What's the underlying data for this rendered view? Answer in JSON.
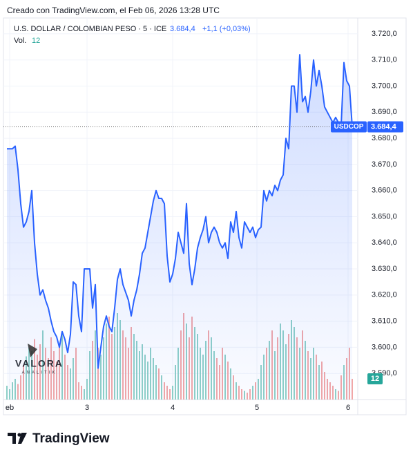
{
  "header": "Creado con TradingView.com, el Feb 06, 2026 13:28 UTC",
  "footer": "TradingView",
  "watermark": {
    "title": "VALORA",
    "subtitle": "ANALITIK"
  },
  "chart_data": {
    "type": "line",
    "title": "U.S. DOLLAR / COLOMBIAN PESO · 5 · ICE",
    "change": "+1,1 (+0,03%)",
    "symbol": "USDCOP",
    "last_price": {
      "value": 3684.4,
      "label": "3.684,4"
    },
    "volume_label": "Vol.",
    "color": "#2962ff",
    "up_color": "#8fd0c7",
    "down_color": "#f2a7a7",
    "grid": true,
    "xlim": [
      0,
      127
    ],
    "xticks": [
      {
        "value": 1,
        "label": "eb"
      },
      {
        "value": 29,
        "label": "3"
      },
      {
        "value": 60,
        "label": "4"
      },
      {
        "value": 90.5,
        "label": "5"
      },
      {
        "value": 123.5,
        "label": "6"
      }
    ],
    "ylim": [
      3580,
      3725
    ],
    "yticks": [
      {
        "value": 3590,
        "label": "3.590,0"
      },
      {
        "value": 3600,
        "label": "3.600,0"
      },
      {
        "value": 3610,
        "label": "3.610,0"
      },
      {
        "value": 3620,
        "label": "3.620,0"
      },
      {
        "value": 3630,
        "label": "3.630,0"
      },
      {
        "value": 3640,
        "label": "3.640,0"
      },
      {
        "value": 3650,
        "label": "3.650,0"
      },
      {
        "value": 3660,
        "label": "3.660,0"
      },
      {
        "value": 3670,
        "label": "3.670,0"
      },
      {
        "value": 3680,
        "label": "3.680,0"
      },
      {
        "value": 3690,
        "label": "3.690,0"
      },
      {
        "value": 3700,
        "label": "3.700,0"
      },
      {
        "value": 3710,
        "label": "3.710,0"
      },
      {
        "value": 3720,
        "label": "3.720,0"
      }
    ],
    "values": [
      3676,
      3676,
      3676,
      3677,
      3668,
      3655,
      3646,
      3648,
      3652,
      3660,
      3640,
      3628,
      3620,
      3622,
      3618,
      3615,
      3610,
      3606,
      3604,
      3600,
      3606,
      3603,
      3598,
      3605,
      3625,
      3624,
      3612,
      3606,
      3630,
      3630,
      3630,
      3615,
      3624,
      3592,
      3600,
      3608,
      3612,
      3608,
      3606,
      3615,
      3626,
      3630,
      3624,
      3621,
      3618,
      3612,
      3618,
      3622,
      3628,
      3636,
      3638,
      3644,
      3650,
      3656,
      3660,
      3657,
      3657,
      3655,
      3635,
      3625,
      3628,
      3634,
      3644,
      3640,
      3636,
      3655,
      3632,
      3624,
      3630,
      3638,
      3642,
      3645,
      3650,
      3640,
      3644,
      3646,
      3644,
      3640,
      3638,
      3640,
      3634,
      3648,
      3644,
      3652,
      3642,
      3638,
      3648,
      3646,
      3644,
      3646,
      3642,
      3645,
      3646,
      3660,
      3656,
      3660,
      3658,
      3662,
      3660,
      3664,
      3666,
      3680,
      3676,
      3700,
      3700,
      3690,
      3712,
      3694,
      3696,
      3690,
      3698,
      3710,
      3700,
      3706,
      3700,
      3692,
      3690,
      3688,
      3686,
      3688,
      3686,
      3685,
      3709,
      3702,
      3700,
      3684.4
    ],
    "vlim": [
      0,
      60
    ],
    "volume": [
      8,
      6,
      10,
      12,
      9,
      14,
      20,
      25,
      30,
      28,
      35,
      26,
      32,
      40,
      30,
      24,
      36,
      28,
      22,
      30,
      38,
      26,
      20,
      18,
      24,
      30,
      10,
      8,
      6,
      12,
      28,
      34,
      40,
      30,
      26,
      36,
      44,
      48,
      38,
      42,
      50,
      46,
      40,
      36,
      30,
      42,
      38,
      34,
      28,
      32,
      26,
      22,
      30,
      24,
      20,
      18,
      14,
      10,
      8,
      6,
      8,
      20,
      30,
      40,
      50,
      44,
      36,
      48,
      42,
      38,
      30,
      26,
      34,
      40,
      36,
      28,
      24,
      20,
      30,
      26,
      22,
      18,
      14,
      10,
      8,
      6,
      5,
      4,
      6,
      8,
      10,
      12,
      20,
      26,
      30,
      34,
      40,
      28,
      36,
      44,
      40,
      32,
      38,
      46,
      42,
      36,
      30,
      40,
      34,
      28,
      24,
      30,
      26,
      20,
      22,
      16,
      12,
      10,
      8,
      6,
      5,
      14,
      20,
      24,
      30,
      12
    ]
  }
}
